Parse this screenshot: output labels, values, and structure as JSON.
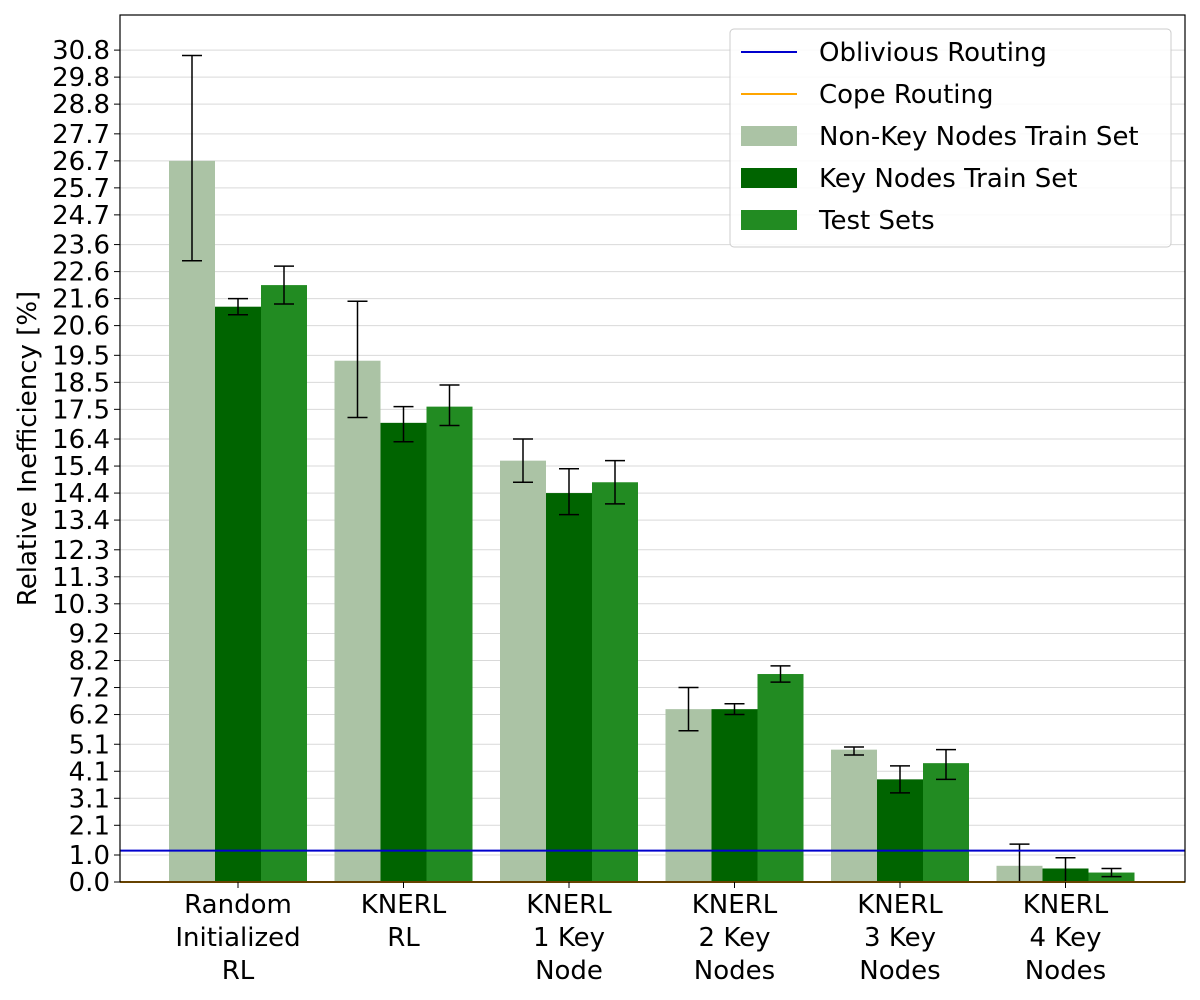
{
  "chart_data": {
    "type": "bar",
    "ylabel": "Relative Inefficiency [%]",
    "xlabel": "",
    "ylim": [
      0,
      32.1
    ],
    "yticks": [
      0.0,
      1.0,
      2.1,
      3.1,
      4.1,
      5.1,
      6.2,
      7.2,
      8.2,
      9.2,
      10.3,
      11.3,
      12.3,
      13.4,
      14.4,
      15.4,
      16.4,
      17.5,
      18.5,
      19.5,
      20.6,
      21.6,
      22.6,
      23.6,
      24.7,
      25.7,
      26.7,
      27.7,
      28.8,
      29.8,
      30.8
    ],
    "ytick_labels": [
      "0.0",
      "1.0",
      "2.1",
      "3.1",
      "4.1",
      "5.1",
      "6.2",
      "7.2",
      "8.2",
      "9.2",
      "10.3",
      "11.3",
      "12.3",
      "13.4",
      "14.4",
      "15.4",
      "16.4",
      "17.5",
      "18.5",
      "19.5",
      "20.6",
      "21.6",
      "22.6",
      "23.6",
      "24.7",
      "25.7",
      "26.7",
      "27.7",
      "28.8",
      "29.8",
      "30.8"
    ],
    "grid": "horizontal",
    "legend_position": "top-right",
    "categories": [
      [
        "Random",
        "Initialized",
        "RL"
      ],
      [
        "KNERL",
        "RL"
      ],
      [
        "KNERL",
        "1 Key",
        "Node"
      ],
      [
        "KNERL",
        "2 Key",
        "Nodes"
      ],
      [
        "KNERL",
        "3 Key",
        "Nodes"
      ],
      [
        "KNERL",
        "4 Key",
        "Nodes"
      ]
    ],
    "series": [
      {
        "name": "Non-Key Nodes Train Set",
        "color": "#abc3a5",
        "values": [
          26.7,
          19.3,
          15.6,
          6.4,
          4.9,
          0.6
        ],
        "err_low": [
          23.0,
          17.2,
          14.8,
          5.6,
          4.7,
          0.0
        ],
        "err_high": [
          30.6,
          21.5,
          16.4,
          7.2,
          5.0,
          1.4
        ]
      },
      {
        "name": "Key Nodes Train Set",
        "color": "#006400",
        "values": [
          21.3,
          17.0,
          14.4,
          6.4,
          3.8,
          0.5
        ],
        "err_low": [
          21.0,
          16.3,
          13.6,
          6.2,
          3.3,
          0.0
        ],
        "err_high": [
          21.6,
          17.6,
          15.3,
          6.6,
          4.3,
          0.9
        ]
      },
      {
        "name": "Test Sets",
        "color": "#228b22",
        "values": [
          22.1,
          17.6,
          14.8,
          7.7,
          4.4,
          0.35
        ],
        "err_low": [
          21.4,
          16.9,
          14.0,
          7.4,
          3.8,
          0.2
        ],
        "err_high": [
          22.8,
          18.4,
          15.6,
          8.0,
          4.9,
          0.5
        ]
      }
    ],
    "reference_lines": [
      {
        "name": "Oblivious Routing",
        "value": 1.16,
        "color": "#0000cd"
      },
      {
        "name": "Cope Routing",
        "value": 0.0,
        "color": "#ffa500"
      }
    ],
    "legend": [
      {
        "label": "Oblivious Routing",
        "kind": "line",
        "color": "#0000cd"
      },
      {
        "label": "Cope Routing",
        "kind": "line",
        "color": "#ffa500"
      },
      {
        "label": "Non-Key Nodes Train Set",
        "kind": "patch",
        "color": "#abc3a5"
      },
      {
        "label": "Key Nodes Train Set",
        "kind": "patch",
        "color": "#006400"
      },
      {
        "label": "Test Sets",
        "kind": "patch",
        "color": "#228b22"
      }
    ]
  }
}
